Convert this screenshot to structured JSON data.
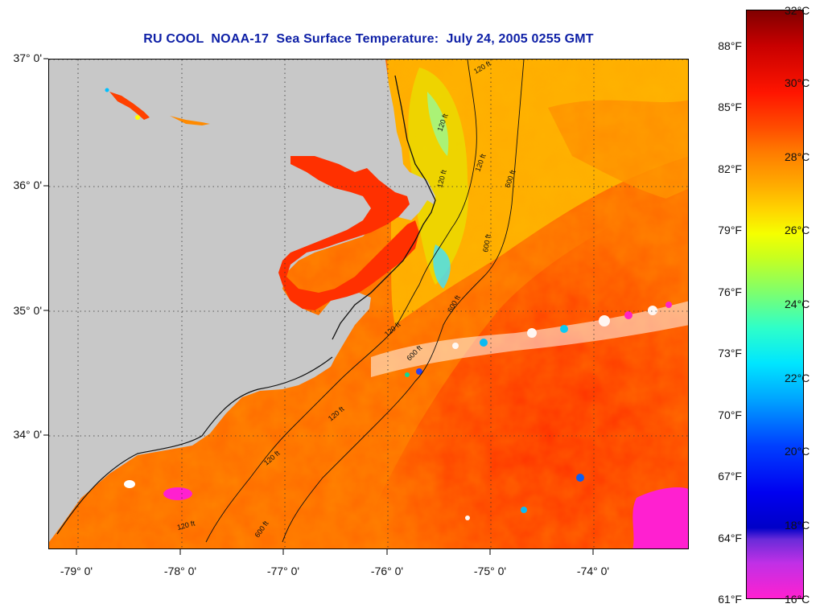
{
  "title": "RU COOL  NOAA-17  Sea Surface Temperature:  July 24, 2005 0255 GMT",
  "lat_labels": [
    "37° 0'",
    "36° 0'",
    "35° 0'",
    "34° 0'"
  ],
  "lon_labels": [
    "-79° 0'",
    "-78° 0'",
    "-77° 0'",
    "-76° 0'",
    "-75° 0'",
    "-74° 0'"
  ],
  "colorbar": {
    "fahrenheit": [
      "88°F",
      "85°F",
      "82°F",
      "79°F",
      "76°F",
      "73°F",
      "70°F",
      "67°F",
      "64°F",
      "61°F"
    ],
    "celsius": [
      "32°C",
      "30°C",
      "28°C",
      "26°C",
      "24°C",
      "22°C",
      "20°C",
      "18°C",
      "16°C"
    ]
  },
  "isobath_labels": [
    "120 ft",
    "120 ft",
    "120 ft",
    "600 ft",
    "120 ft",
    "600 ft",
    "120 ft",
    "600 ft",
    "120 ft",
    "120 ft",
    "600 ft",
    "120 ft",
    "600 ft"
  ],
  "colors": {
    "land": "#c8c8c8",
    "title": "#0d1fa6",
    "ocean_warm": "#ff3a00",
    "ocean_mid": "#ff7a00",
    "ocean_cool": "#ffb400",
    "cloud": "#ffffff",
    "cold_pink": "#ff1fd0"
  }
}
